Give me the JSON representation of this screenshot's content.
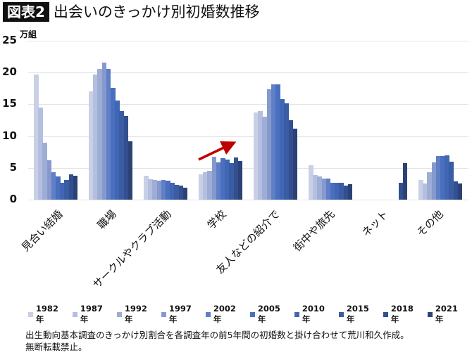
{
  "header": {
    "badge": "図表2",
    "title": "出会いのきっかけ別初婚数推移"
  },
  "chart_data": {
    "type": "bar",
    "title": "出会いのきっかけ別初婚数推移",
    "ylabel": "万組",
    "xlabel": "",
    "ylim": [
      0,
      25
    ],
    "yticks": [
      "0",
      "5",
      "10",
      "15",
      "20",
      "25"
    ],
    "grid": true,
    "legend_position": "bottom",
    "categories": [
      "見合い結婚",
      "職場",
      "サークルやクラブ活動",
      "学校",
      "友人などの紹介で",
      "街中や旅先",
      "ネット",
      "その他"
    ],
    "series": [
      {
        "name": "1982年",
        "color": "#c9d0e6",
        "values": [
          19.7,
          17.0,
          3.8,
          4.0,
          13.7,
          5.4,
          null,
          3.1
        ]
      },
      {
        "name": "1987年",
        "color": "#b4bfe0",
        "values": [
          14.5,
          19.7,
          3.2,
          4.3,
          13.9,
          3.9,
          null,
          2.5
        ]
      },
      {
        "name": "1992年",
        "color": "#9eadd6",
        "values": [
          8.9,
          20.5,
          3.1,
          4.5,
          13.0,
          3.6,
          null,
          4.3
        ]
      },
      {
        "name": "1997年",
        "color": "#8599cd",
        "values": [
          6.2,
          21.5,
          3.0,
          6.7,
          17.3,
          3.3,
          null,
          5.9
        ]
      },
      {
        "name": "2002年",
        "color": "#5f7fc6",
        "values": [
          4.3,
          20.5,
          3.1,
          5.9,
          18.1,
          3.3,
          null,
          6.8
        ]
      },
      {
        "name": "2005年",
        "color": "#4a6fbf",
        "values": [
          3.7,
          17.6,
          3.0,
          6.5,
          18.1,
          2.6,
          null,
          6.9
        ]
      },
      {
        "name": "2010年",
        "color": "#4066b4",
        "values": [
          2.7,
          15.6,
          2.7,
          6.3,
          15.8,
          2.7,
          null,
          7.0
        ]
      },
      {
        "name": "2015年",
        "color": "#3a5ca3",
        "values": [
          3.1,
          13.9,
          2.3,
          5.7,
          15.1,
          2.7,
          null,
          6.0
        ]
      },
      {
        "name": "2018年",
        "color": "#334f8f",
        "values": [
          4.0,
          13.1,
          2.2,
          6.6,
          12.5,
          2.2,
          2.7,
          2.9
        ]
      },
      {
        "name": "2021年",
        "color": "#2b4276",
        "values": [
          3.8,
          9.2,
          1.9,
          6.1,
          11.2,
          2.4,
          5.8,
          2.5
        ]
      }
    ],
    "annotations": [
      {
        "type": "arrow",
        "color": "#c00000",
        "near": "学校",
        "direction": "up-right"
      }
    ]
  },
  "note": {
    "line1": "出生動向基本調査のきっかけ別割合を各調査年の前5年間の初婚数と掛け合わせて荒川和久作成。",
    "line2": "無断転載禁止。"
  }
}
